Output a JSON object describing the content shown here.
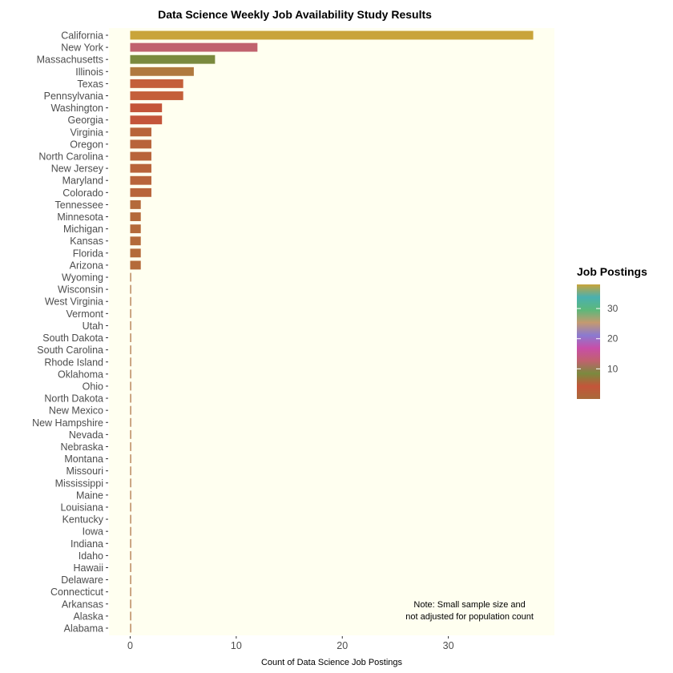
{
  "chart_data": {
    "type": "bar",
    "orientation": "horizontal",
    "title": "Data Science Weekly Job Availability Study Results",
    "xlabel": "Count of Data Science Job Postings",
    "ylabel": "",
    "xlim": [
      -2,
      40
    ],
    "xticks": [
      0,
      10,
      20,
      30
    ],
    "panel_background": "#fffff0",
    "grid": false,
    "categories": [
      "California",
      "New York",
      "Massachusetts",
      "Illinois",
      "Texas",
      "Pennsylvania",
      "Washington",
      "Georgia",
      "Virginia",
      "Oregon",
      "North Carolina",
      "New Jersey",
      "Maryland",
      "Colorado",
      "Tennessee",
      "Minnesota",
      "Michigan",
      "Kansas",
      "Florida",
      "Arizona",
      "Wyoming",
      "Wisconsin",
      "West Virginia",
      "Vermont",
      "Utah",
      "South Dakota",
      "South Carolina",
      "Rhode Island",
      "Oklahoma",
      "Ohio",
      "North Dakota",
      "New Mexico",
      "New Hampshire",
      "Nevada",
      "Nebraska",
      "Montana",
      "Missouri",
      "Mississippi",
      "Maine",
      "Louisiana",
      "Kentucky",
      "Iowa",
      "Indiana",
      "Idaho",
      "Hawaii",
      "Delaware",
      "Connecticut",
      "Arkansas",
      "Alaska",
      "Alabama"
    ],
    "values": [
      38,
      12,
      8,
      6,
      5,
      5,
      3,
      3,
      2,
      2,
      2,
      2,
      2,
      2,
      1,
      1,
      1,
      1,
      1,
      1,
      0,
      0,
      0,
      0,
      0,
      0,
      0,
      0,
      0,
      0,
      0,
      0,
      0,
      0,
      0,
      0,
      0,
      0,
      0,
      0,
      0,
      0,
      0,
      0,
      0,
      0,
      0,
      0,
      0,
      0
    ],
    "colors": [
      "#c9a43a",
      "#c0626e",
      "#7a8a3e",
      "#b07a3e",
      "#c45f3a",
      "#c45f3a",
      "#c4553a",
      "#c4553a",
      "#b8643a",
      "#b8643a",
      "#b8643a",
      "#b8643a",
      "#b8643a",
      "#b8643a",
      "#b46a3a",
      "#b46a3a",
      "#b46a3a",
      "#b46a3a",
      "#b46a3a",
      "#b46a3a",
      "#a86a3a",
      "#a86a3a",
      "#a86a3a",
      "#a86a3a",
      "#a86a3a",
      "#a86a3a",
      "#a86a3a",
      "#a86a3a",
      "#a86a3a",
      "#a86a3a",
      "#a86a3a",
      "#a86a3a",
      "#a86a3a",
      "#a86a3a",
      "#a86a3a",
      "#a86a3a",
      "#a86a3a",
      "#a86a3a",
      "#a86a3a",
      "#a86a3a",
      "#a86a3a",
      "#a86a3a",
      "#a86a3a",
      "#a86a3a",
      "#a86a3a",
      "#a86a3a",
      "#a86a3a",
      "#a86a3a",
      "#a86a3a",
      "#a86a3a"
    ],
    "legend": {
      "title": "Job Postings",
      "position": "right",
      "type": "colorbar",
      "range": [
        0,
        38
      ],
      "ticks": [
        10,
        20,
        30
      ],
      "stops": [
        "#a86a3a",
        "#c4553a",
        "#7a8a3e",
        "#c0626e",
        "#c84ea8",
        "#8a7ad0",
        "#c49a70",
        "#5cb87a",
        "#4ab0b0",
        "#c9a43a"
      ]
    },
    "annotations": [
      {
        "text": "Note: Small sample size and",
        "x": 32,
        "category": "Arkansas"
      },
      {
        "text": "not adjusted for population count",
        "x": 32,
        "category": "Alaska"
      }
    ]
  }
}
